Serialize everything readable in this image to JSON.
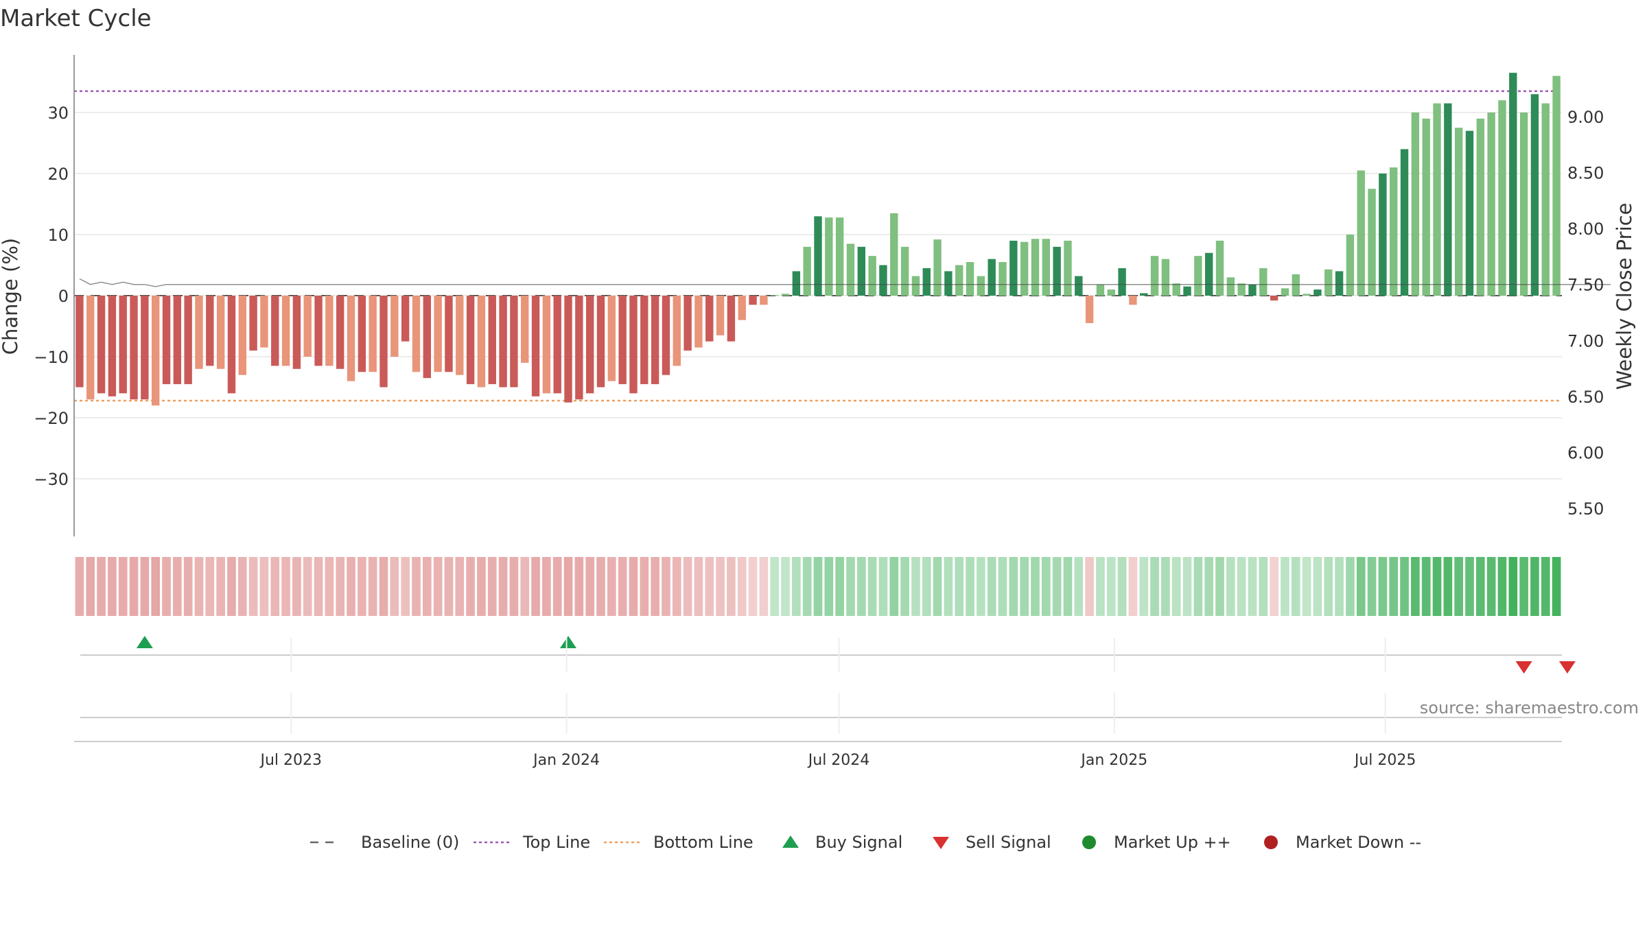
{
  "chart_data": {
    "type": "bar",
    "title": "Market Cycle",
    "ylabel": "Change (%)",
    "y2label": "Weekly Close Price",
    "ylim": [
      -40,
      40
    ],
    "y_ticks": [
      30,
      20,
      10,
      0,
      -10,
      -20,
      -30
    ],
    "y_tick_labels": [
      "30",
      "20",
      "10",
      "0",
      "−10",
      "−20",
      "−30"
    ],
    "y2lim": [
      5.25,
      9.55
    ],
    "y2_ticks": [
      9.0,
      8.5,
      8.0,
      7.5,
      7.0,
      6.5,
      6.0,
      5.5
    ],
    "y2_tick_labels": [
      "9.00",
      "8.50",
      "8.00",
      "7.50",
      "7.00",
      "6.50",
      "6.00",
      "5.50"
    ],
    "x_start": "2023-02-06",
    "x_end": "2025-10-27",
    "x_ticks": [
      {
        "date": "2023-07-01",
        "label": "Jul 2023"
      },
      {
        "date": "2024-01-01",
        "label": "Jan 2024"
      },
      {
        "date": "2024-07-01",
        "label": "Jul 2024"
      },
      {
        "date": "2025-01-01",
        "label": "Jan 2025"
      },
      {
        "date": "2025-07-01",
        "label": "Jul 2025"
      }
    ],
    "top_line": 33.5,
    "bottom_line": -17.2,
    "baseline": 0,
    "values": [
      -15,
      -17,
      -16,
      -16.5,
      -16,
      -17,
      -17,
      -18,
      -14.5,
      -14.5,
      -14.5,
      -12,
      -11.5,
      -12,
      -16,
      -13,
      -9,
      -8.5,
      -11.5,
      -11.5,
      -12,
      -10,
      -11.5,
      -11.5,
      -12,
      -14,
      -12.5,
      -12.5,
      -15,
      -10,
      -7.5,
      -12.5,
      -13.5,
      -12.5,
      -12.5,
      -13,
      -14.5,
      -15,
      -14.5,
      -15,
      -15,
      -11,
      -16.5,
      -16,
      -16,
      -17.5,
      -17,
      -16,
      -15,
      -14,
      -14.5,
      -16,
      -14.5,
      -14.5,
      -13,
      -11.5,
      -9,
      -8.5,
      -7.5,
      -6.5,
      -7.5,
      -4,
      -1.5,
      -1.5,
      0.1,
      0.3,
      4,
      8,
      13,
      12.8,
      12.8,
      8.5,
      8,
      6.5,
      5,
      13.5,
      8,
      3.2,
      4.5,
      9.2,
      4,
      5,
      5.5,
      3.2,
      6,
      5.5,
      9,
      8.8,
      9.3,
      9.3,
      8,
      9,
      3.2,
      -4.5,
      1.8,
      1,
      4.5,
      -1.5,
      0.4,
      6.5,
      6,
      2,
      1.5,
      6.5,
      7,
      9,
      3,
      2,
      1.8,
      4.5,
      -0.8,
      1.2,
      3.5,
      0.3,
      1,
      4.3,
      4,
      10,
      20.5,
      17.5,
      20,
      21,
      24,
      30,
      29,
      31.5,
      31.5,
      27.5,
      27,
      29,
      30,
      32,
      36.5,
      30,
      33,
      31.5,
      36
    ],
    "price": [
      7.55,
      7.5,
      7.52,
      7.5,
      7.52,
      7.5,
      7.5,
      7.48,
      7.5,
      7.5,
      7.5,
      7.5,
      7.5,
      7.5,
      7.5,
      7.5,
      7.5,
      7.5,
      7.5,
      7.5,
      7.5,
      7.5,
      7.5,
      7.5,
      7.5,
      7.5,
      7.5,
      7.5,
      7.5,
      7.5,
      7.5,
      7.5,
      7.5,
      7.5,
      7.5,
      7.5,
      7.5,
      7.5,
      7.5,
      7.5,
      7.5,
      7.5,
      7.5,
      7.5,
      7.5,
      7.5,
      7.5,
      7.5,
      7.5,
      7.5,
      7.5,
      7.5,
      7.5,
      7.5,
      7.5,
      7.5,
      7.5,
      7.5,
      7.5,
      7.5,
      7.5,
      7.5,
      7.5,
      7.5,
      7.5,
      7.5,
      7.5,
      7.5,
      7.5,
      7.5,
      7.5,
      7.5,
      7.5,
      7.5,
      7.5,
      7.5,
      7.5,
      7.5,
      7.5,
      7.5,
      7.5,
      7.5,
      7.5,
      7.5,
      7.5,
      7.5,
      7.5,
      7.5,
      7.5,
      7.5,
      7.5,
      7.5,
      7.5,
      7.5,
      7.5,
      7.5,
      7.5,
      7.5,
      7.5,
      7.5,
      7.5,
      7.5,
      7.5,
      7.5,
      7.5,
      7.5,
      7.5,
      7.5,
      7.5,
      7.5,
      7.5,
      7.5,
      7.5,
      7.5,
      7.5,
      7.5,
      7.5,
      7.5,
      7.5,
      7.5,
      7.5,
      7.5,
      7.5,
      7.5,
      7.5,
      7.5,
      7.5,
      7.5,
      7.5,
      7.5,
      7.5,
      7.5,
      7.5,
      7.5,
      7.5,
      7.5,
      7.5,
      7.5,
      7.5,
      7.5,
      7.5,
      7.5
    ],
    "buy_signals": [
      6,
      45
    ],
    "sell_signals": [
      133,
      137
    ],
    "colors": {
      "neg_strong": "#c95a58",
      "neg_light": "#e8957a",
      "pos_strong": "#2e8b57",
      "pos_light": "#7fbf7f",
      "top_line": "#9b59b6",
      "bottom_line": "#f0a060",
      "buy": "#1e9e50",
      "sell": "#d93030",
      "market_up": "#1e8b2e",
      "market_down": "#b02020",
      "heat_neg": "#d46a6a",
      "heat_pos": "#2ea84a"
    }
  },
  "source_text": "source: sharemaestro.com",
  "legend": [
    {
      "label": "Baseline (0)",
      "kind": "dash-line",
      "color": "#666666"
    },
    {
      "label": "Top Line",
      "kind": "dot-line",
      "color": "#9b59b6"
    },
    {
      "label": "Bottom Line",
      "kind": "dot-line",
      "color": "#f0a060"
    },
    {
      "label": "Buy Signal",
      "kind": "tri-up",
      "color": "#1e9e50"
    },
    {
      "label": "Sell Signal",
      "kind": "tri-down",
      "color": "#d93030"
    },
    {
      "label": "Market Up ++",
      "kind": "circle",
      "color": "#1e8b2e"
    },
    {
      "label": "Market Down --",
      "kind": "circle",
      "color": "#b02020"
    }
  ]
}
